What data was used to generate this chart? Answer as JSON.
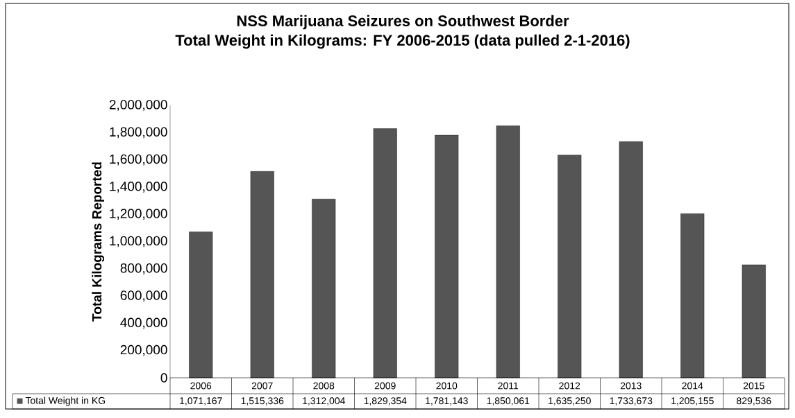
{
  "chart_data": {
    "type": "bar",
    "title": "NSS Marijuana Seizures on Southwest Border",
    "subtitle": "Total Weight in Kilograms: FY 2006-2015 (data pulled 2-1-2016)",
    "ylabel": "Total Kilograms Reported",
    "categories": [
      "2006",
      "2007",
      "2008",
      "2009",
      "2010",
      "2011",
      "2012",
      "2013",
      "2014",
      "2015"
    ],
    "series": [
      {
        "name": "Total Weight in KG",
        "color": "#555555",
        "values": [
          1071167,
          1515336,
          1312004,
          1829354,
          1781143,
          1850061,
          1635250,
          1733673,
          1205155,
          829536
        ],
        "value_labels": [
          "1,071,167",
          "1,515,336",
          "1,312,004",
          "1,829,354",
          "1,781,143",
          "1,850,061",
          "1,635,250",
          "1,733,673",
          "1,205,155",
          "829,536"
        ]
      }
    ],
    "ylim": [
      0,
      2000000
    ],
    "yticks": [
      0,
      {
        "value": 200000,
        "label": "200,000"
      },
      {
        "value": 400000,
        "label": "400,000"
      },
      {
        "value": 600000,
        "label": "600,000"
      },
      {
        "value": 800000,
        "label": "800,000"
      },
      {
        "value": 1000000,
        "label": "1,000,000"
      },
      {
        "value": 1200000,
        "label": "1,200,000"
      },
      {
        "value": 1400000,
        "label": "1,400,000"
      },
      {
        "value": 1600000,
        "label": "1,600,000"
      },
      {
        "value": 1800000,
        "label": "1,800,000"
      },
      {
        "value": 2000000,
        "label": "2,000,000"
      }
    ]
  }
}
